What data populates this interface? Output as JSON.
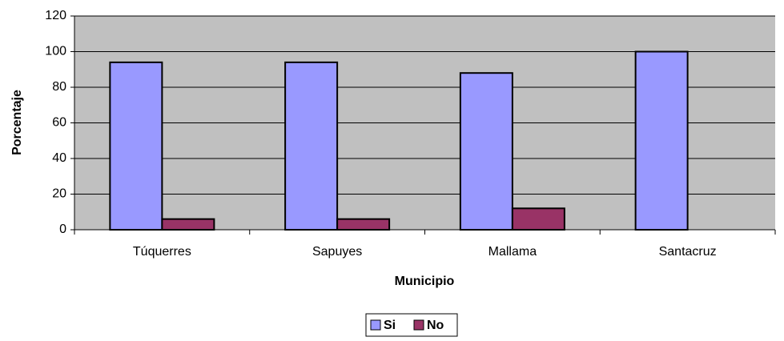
{
  "chart_data": {
    "type": "bar",
    "categories": [
      "Túquerres",
      "Sapuyes",
      "Mallama",
      "Santacruz"
    ],
    "series": [
      {
        "name": "Si",
        "color": "#9999ff",
        "values": [
          94,
          94,
          88,
          100
        ]
      },
      {
        "name": "No",
        "color": "#993366",
        "values": [
          6,
          6,
          12,
          0
        ]
      }
    ],
    "ylim": [
      0,
      120
    ],
    "yticks": [
      0,
      20,
      40,
      60,
      80,
      100,
      120
    ],
    "xlabel": "Municipio",
    "ylabel": "Porcentaje",
    "grid": true,
    "legend": "bottom"
  }
}
